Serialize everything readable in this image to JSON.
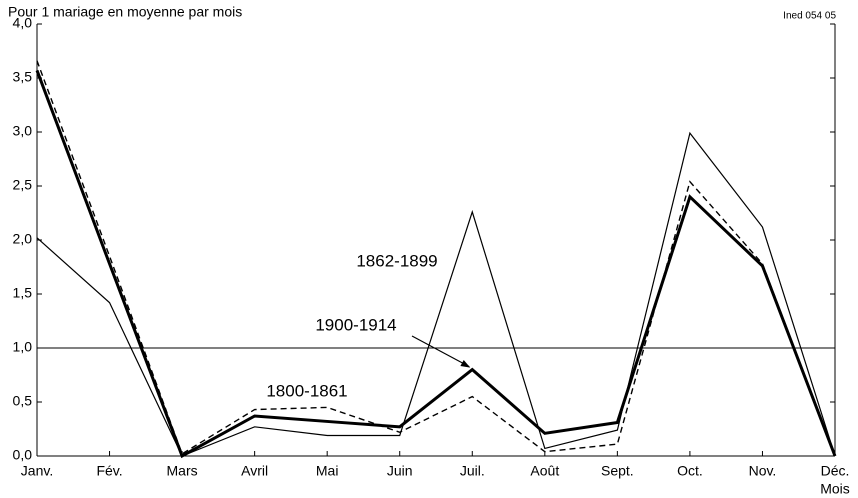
{
  "chart_data": {
    "type": "line",
    "title": "Pour 1 mariage en moyenne par mois",
    "source": "Ined 054 05",
    "x_label": "Mois",
    "categories": [
      "Janv.",
      "Fév.",
      "Mars",
      "Avril",
      "Mai",
      "Juin",
      "Juil.",
      "Août",
      "Sept.",
      "Oct.",
      "Nov.",
      "Déc."
    ],
    "series": [
      {
        "name": "1862-1899",
        "color": "#000000",
        "style": "thin",
        "values": [
          2.02,
          1.42,
          0.0,
          0.27,
          0.19,
          0.19,
          2.26,
          0.07,
          0.24,
          2.99,
          2.12,
          0.0
        ]
      },
      {
        "name": "1900-1914",
        "color": "#000000",
        "style": "thick",
        "values": [
          3.57,
          1.78,
          0.0,
          0.37,
          0.32,
          0.27,
          0.8,
          0.21,
          0.31,
          2.4,
          1.76,
          0.0
        ]
      },
      {
        "name": "1800-1861",
        "color": "#000000",
        "style": "dashed",
        "values": [
          3.66,
          1.85,
          0.02,
          0.43,
          0.45,
          0.22,
          0.55,
          0.04,
          0.11,
          2.54,
          1.78,
          0.0
        ]
      }
    ],
    "ylim": [
      0,
      4
    ],
    "yticks": [
      {
        "value": 0,
        "label": "0,0"
      },
      {
        "value": 0.5,
        "label": "0,5"
      },
      {
        "value": 1,
        "label": "1,0"
      },
      {
        "value": 1.5,
        "label": "1,5"
      },
      {
        "value": 2,
        "label": "2,0"
      },
      {
        "value": 2.5,
        "label": "2,5"
      },
      {
        "value": 3,
        "label": "3,0"
      },
      {
        "value": 3.5,
        "label": "3,5"
      },
      {
        "value": 4,
        "label": "4,0"
      }
    ],
    "reference_line": 1,
    "grid": false
  }
}
